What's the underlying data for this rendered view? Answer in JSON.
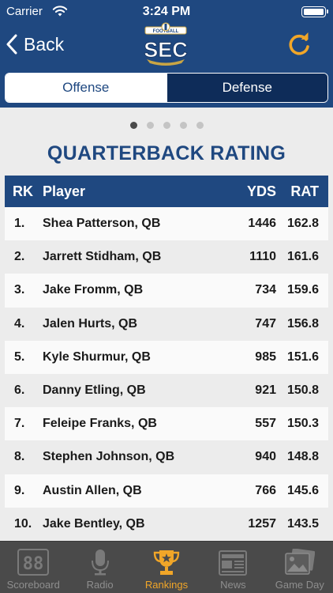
{
  "status_bar": {
    "carrier": "Carrier",
    "time": "3:24 PM"
  },
  "nav": {
    "back_label": "Back",
    "logo_text": "SEC",
    "logo_small_text": "FOOTBALL"
  },
  "segments": [
    {
      "label": "Offense",
      "active": true
    },
    {
      "label": "Defense",
      "active": false
    }
  ],
  "pager": {
    "pages": 5,
    "current": 1
  },
  "title": "QUARTERBACK RATING",
  "table": {
    "headers": {
      "rk": "RK",
      "player": "Player",
      "yds": "YDS",
      "rat": "RAT"
    },
    "rows": [
      {
        "rk": "1.",
        "player": "Shea Patterson, QB",
        "yds": "1446",
        "rat": "162.8"
      },
      {
        "rk": "2.",
        "player": "Jarrett Stidham, QB",
        "yds": "1110",
        "rat": "161.6"
      },
      {
        "rk": "3.",
        "player": "Jake Fromm, QB",
        "yds": "734",
        "rat": "159.6"
      },
      {
        "rk": "4.",
        "player": "Jalen Hurts, QB",
        "yds": "747",
        "rat": "156.8"
      },
      {
        "rk": "5.",
        "player": "Kyle Shurmur, QB",
        "yds": "985",
        "rat": "151.6"
      },
      {
        "rk": "6.",
        "player": "Danny Etling, QB",
        "yds": "921",
        "rat": "150.8"
      },
      {
        "rk": "7.",
        "player": "Feleipe Franks, QB",
        "yds": "557",
        "rat": "150.3"
      },
      {
        "rk": "8.",
        "player": "Stephen Johnson, QB",
        "yds": "940",
        "rat": "148.8"
      },
      {
        "rk": "9.",
        "player": "Austin Allen, QB",
        "yds": "766",
        "rat": "145.6"
      },
      {
        "rk": "10.",
        "player": "Jake Bentley, QB",
        "yds": "1257",
        "rat": "143.5"
      }
    ]
  },
  "tabs": [
    {
      "label": "Scoreboard",
      "icon": "scoreboard-icon",
      "active": false
    },
    {
      "label": "Radio",
      "icon": "microphone-icon",
      "active": false
    },
    {
      "label": "Rankings",
      "icon": "trophy-icon",
      "active": true
    },
    {
      "label": "News",
      "icon": "newspaper-icon",
      "active": false
    },
    {
      "label": "Game Day",
      "icon": "photo-icon",
      "active": false
    }
  ],
  "colors": {
    "primary": "#1f4880",
    "accent": "#f1a628",
    "tab_inactive": "#8e8e8e",
    "tabbar_bg": "#4a4a4a"
  }
}
